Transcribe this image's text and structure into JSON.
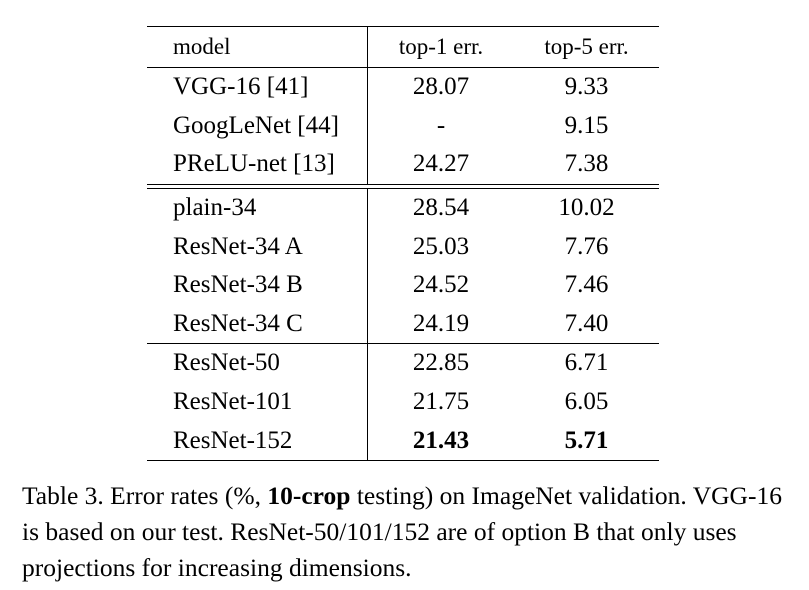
{
  "table": {
    "header": {
      "model": "model",
      "top1": "top-1 err.",
      "top5": "top-5 err."
    },
    "groups": [
      {
        "rows": [
          {
            "model": "VGG-16 [41]",
            "top1": "28.07",
            "top5": "9.33"
          },
          {
            "model": "GoogLeNet [44]",
            "top1": "-",
            "top5": "9.15"
          },
          {
            "model": "PReLU-net [13]",
            "top1": "24.27",
            "top5": "7.38"
          }
        ]
      },
      {
        "rows": [
          {
            "model": "plain-34",
            "top1": "28.54",
            "top5": "10.02"
          },
          {
            "model": "ResNet-34 A",
            "top1": "25.03",
            "top5": "7.76"
          },
          {
            "model": "ResNet-34 B",
            "top1": "24.52",
            "top5": "7.46"
          },
          {
            "model": "ResNet-34 C",
            "top1": "24.19",
            "top5": "7.40"
          }
        ]
      },
      {
        "rows": [
          {
            "model": "ResNet-50",
            "top1": "22.85",
            "top5": "6.71"
          },
          {
            "model": "ResNet-101",
            "top1": "21.75",
            "top5": "6.05"
          },
          {
            "model": "ResNet-152",
            "top1": "21.43",
            "top5": "5.71",
            "bold": true
          }
        ]
      }
    ]
  },
  "caption": {
    "part1": "Table 3. Error rates (%, ",
    "bold": "10-crop",
    "part2": " testing) on ImageNet validation. VGG-16 is based on our test. ResNet-50/101/152 are of option B that only uses projections for increasing dimensions."
  }
}
